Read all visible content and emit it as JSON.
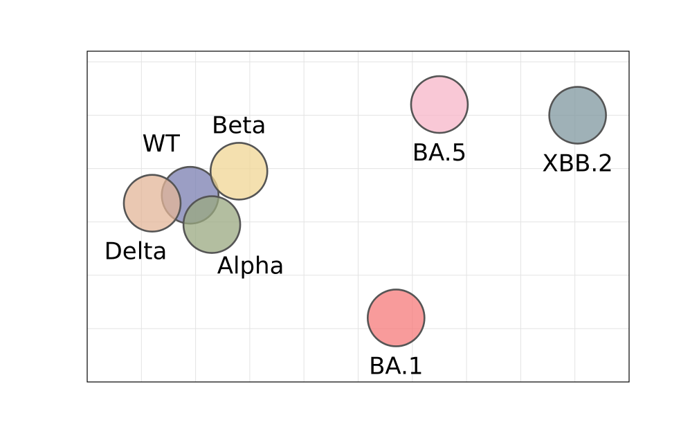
{
  "chart_data": {
    "type": "scatter",
    "title": "",
    "xlabel": "",
    "ylabel": "",
    "xlim": [
      0,
      10
    ],
    "ylim": [
      0,
      6.2
    ],
    "grid": true,
    "tick_labels_visible": false,
    "points": [
      {
        "label": "WT",
        "x": 1.9,
        "y": 3.5,
        "color": "#7a7db0",
        "label_pos": "above-left"
      },
      {
        "label": "Delta",
        "x": 1.2,
        "y": 3.35,
        "color": "#e3b598",
        "label_pos": "below-left"
      },
      {
        "label": "Alpha",
        "x": 2.3,
        "y": 2.95,
        "color": "#99a880",
        "label_pos": "below-right"
      },
      {
        "label": "Beta",
        "x": 2.8,
        "y": 3.95,
        "color": "#f0d594",
        "label_pos": "above"
      },
      {
        "label": "BA.5",
        "x": 6.5,
        "y": 5.2,
        "color": "#f7b6c8",
        "label_pos": "below"
      },
      {
        "label": "XBB.2",
        "x": 9.05,
        "y": 5.0,
        "color": "#7f979f",
        "label_pos": "below"
      },
      {
        "label": "BA.1",
        "x": 5.7,
        "y": 1.2,
        "color": "#f57a7a",
        "label_pos": "below"
      }
    ]
  }
}
